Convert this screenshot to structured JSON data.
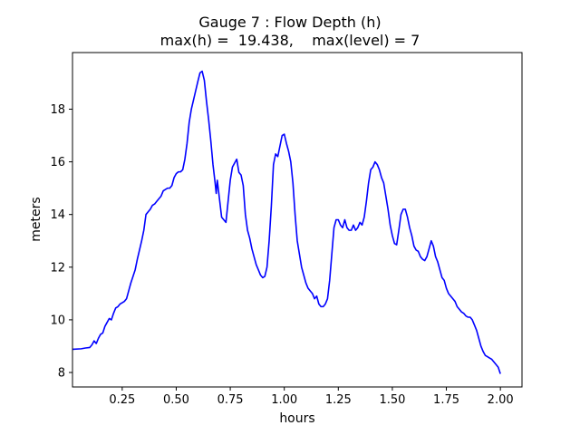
{
  "chart_data": {
    "type": "line",
    "title": "Gauge 7 : Flow Depth (h)",
    "subtitle": "max(h) =  19.438,    max(level) = 7",
    "xlabel": "hours",
    "ylabel": "meters",
    "xlim": [
      0.02,
      2.1
    ],
    "ylim": [
      7.45,
      20.15
    ],
    "xticks": [
      0.25,
      0.5,
      0.75,
      1.0,
      1.25,
      1.5,
      1.75,
      2.0
    ],
    "xtick_labels": [
      "0.25",
      "0.50",
      "0.75",
      "1.00",
      "1.25",
      "1.50",
      "1.75",
      "2.00"
    ],
    "yticks": [
      8,
      10,
      12,
      14,
      16,
      18
    ],
    "ytick_labels": [
      "8",
      "10",
      "12",
      "14",
      "16",
      "18"
    ],
    "grid": false,
    "line_color": "#0000ff",
    "series": [
      {
        "x": [
          0.02,
          0.06,
          0.08,
          0.1,
          0.11,
          0.12,
          0.13,
          0.14,
          0.15,
          0.16,
          0.17,
          0.18,
          0.19,
          0.2,
          0.21,
          0.22,
          0.23,
          0.24,
          0.25,
          0.26,
          0.27,
          0.28,
          0.29,
          0.3,
          0.31,
          0.32,
          0.33,
          0.34,
          0.35,
          0.36,
          0.37,
          0.38,
          0.39,
          0.4,
          0.41,
          0.42,
          0.43,
          0.44,
          0.45,
          0.46,
          0.47,
          0.48,
          0.49,
          0.5,
          0.51,
          0.52,
          0.53,
          0.54,
          0.55,
          0.56,
          0.57,
          0.58,
          0.59,
          0.6,
          0.61,
          0.62,
          0.63,
          0.64,
          0.65,
          0.66,
          0.67,
          0.68,
          0.685,
          0.69,
          0.7,
          0.71,
          0.72,
          0.73,
          0.74,
          0.75,
          0.76,
          0.77,
          0.78,
          0.79,
          0.8,
          0.81,
          0.82,
          0.83,
          0.84,
          0.85,
          0.86,
          0.87,
          0.88,
          0.89,
          0.9,
          0.91,
          0.92,
          0.93,
          0.94,
          0.95,
          0.96,
          0.97,
          0.98,
          0.99,
          1.0,
          1.01,
          1.02,
          1.03,
          1.04,
          1.05,
          1.06,
          1.07,
          1.08,
          1.09,
          1.1,
          1.11,
          1.12,
          1.13,
          1.14,
          1.15,
          1.16,
          1.17,
          1.18,
          1.19,
          1.2,
          1.21,
          1.22,
          1.23,
          1.24,
          1.25,
          1.26,
          1.27,
          1.28,
          1.29,
          1.3,
          1.31,
          1.32,
          1.33,
          1.34,
          1.35,
          1.36,
          1.37,
          1.38,
          1.39,
          1.4,
          1.41,
          1.42,
          1.43,
          1.44,
          1.45,
          1.46,
          1.47,
          1.48,
          1.49,
          1.5,
          1.51,
          1.52,
          1.53,
          1.54,
          1.55,
          1.56,
          1.57,
          1.58,
          1.59,
          1.6,
          1.61,
          1.62,
          1.63,
          1.64,
          1.65,
          1.66,
          1.67,
          1.68,
          1.69,
          1.7,
          1.71,
          1.72,
          1.73,
          1.74,
          1.75,
          1.76,
          1.77,
          1.78,
          1.79,
          1.8,
          1.81,
          1.82,
          1.83,
          1.84,
          1.85,
          1.86,
          1.87,
          1.88,
          1.89,
          1.9,
          1.91,
          1.92,
          1.93,
          1.94,
          1.95,
          1.96,
          1.97,
          1.98,
          1.99,
          2.0
        ],
        "y": [
          8.88,
          8.9,
          8.93,
          8.95,
          9.05,
          9.2,
          9.1,
          9.3,
          9.45,
          9.5,
          9.75,
          9.9,
          10.05,
          10.0,
          10.25,
          10.45,
          10.5,
          10.6,
          10.65,
          10.7,
          10.8,
          11.1,
          11.4,
          11.65,
          11.9,
          12.3,
          12.65,
          13.0,
          13.4,
          14.0,
          14.1,
          14.2,
          14.35,
          14.4,
          14.5,
          14.6,
          14.7,
          14.9,
          14.95,
          15.0,
          15.0,
          15.1,
          15.4,
          15.55,
          15.62,
          15.62,
          15.7,
          16.1,
          16.7,
          17.5,
          18.0,
          18.35,
          18.7,
          19.05,
          19.38,
          19.44,
          19.1,
          18.3,
          17.6,
          16.8,
          15.9,
          15.2,
          14.8,
          15.3,
          14.6,
          13.9,
          13.8,
          13.7,
          14.5,
          15.3,
          15.8,
          15.95,
          16.1,
          15.6,
          15.5,
          15.1,
          14.0,
          13.4,
          13.1,
          12.7,
          12.4,
          12.1,
          11.9,
          11.7,
          11.6,
          11.65,
          12.0,
          13.0,
          14.3,
          15.9,
          16.3,
          16.2,
          16.6,
          17.0,
          17.05,
          16.7,
          16.4,
          16.0,
          15.2,
          14.0,
          13.0,
          12.5,
          12.0,
          11.7,
          11.4,
          11.2,
          11.1,
          11.0,
          10.8,
          10.9,
          10.6,
          10.5,
          10.5,
          10.6,
          10.8,
          11.5,
          12.5,
          13.5,
          13.8,
          13.8,
          13.6,
          13.5,
          13.8,
          13.5,
          13.4,
          13.4,
          13.6,
          13.4,
          13.5,
          13.7,
          13.6,
          13.9,
          14.5,
          15.2,
          15.7,
          15.8,
          16.0,
          15.9,
          15.7,
          15.4,
          15.2,
          14.7,
          14.2,
          13.6,
          13.2,
          12.9,
          12.85,
          13.4,
          14.0,
          14.2,
          14.2,
          13.9,
          13.5,
          13.2,
          12.8,
          12.65,
          12.6,
          12.4,
          12.3,
          12.25,
          12.4,
          12.7,
          13.0,
          12.8,
          12.4,
          12.2,
          11.9,
          11.6,
          11.5,
          11.2,
          11.0,
          10.9,
          10.8,
          10.7,
          10.5,
          10.4,
          10.3,
          10.25,
          10.15,
          10.1,
          10.1,
          10.0,
          9.8,
          9.6,
          9.3,
          9.0,
          8.8,
          8.65,
          8.6,
          8.55,
          8.5,
          8.4,
          8.3,
          8.2,
          7.95
        ]
      }
    ]
  }
}
